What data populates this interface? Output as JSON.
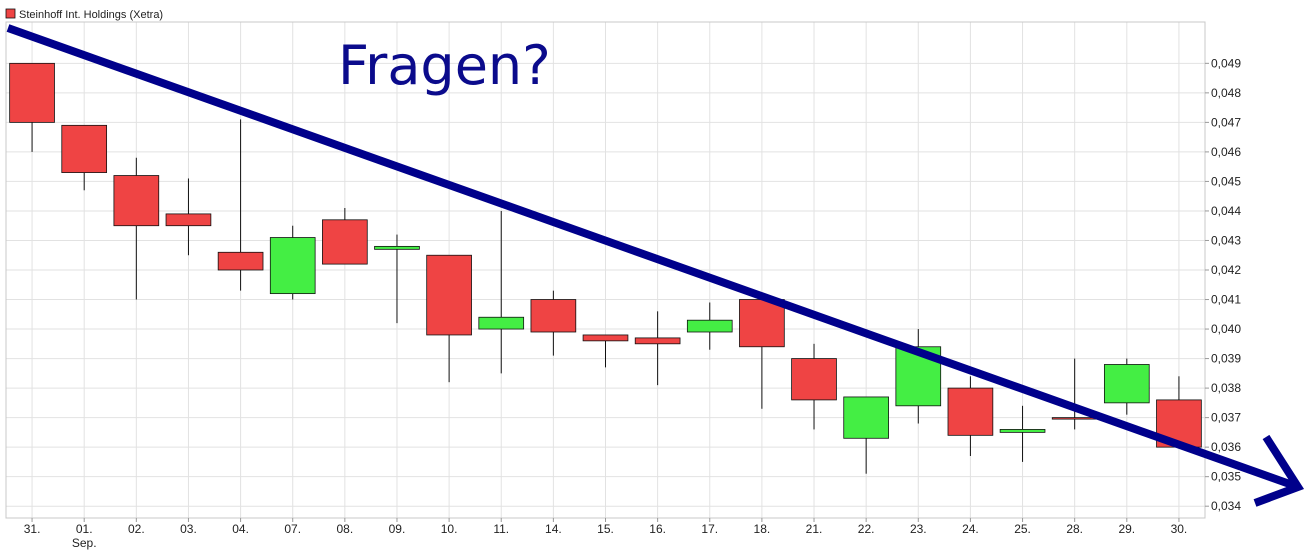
{
  "chart_data": {
    "type": "candlestick",
    "legend": {
      "label": "Steinhoff Int. Holdings (Xetra)",
      "color": "#ef4444",
      "placement": "top-left"
    },
    "annotation": "Fragen?",
    "grid": true,
    "colors": {
      "up": "#44ee44",
      "down": "#ef4444",
      "outline": "#111111",
      "trend": "#00008b"
    },
    "ylim": [
      0.0336,
      0.0504
    ],
    "yticks": [
      "0,034",
      "0,035",
      "0,036",
      "0,037",
      "0,038",
      "0,039",
      "0,040",
      "0,041",
      "0,042",
      "0,043",
      "0,044",
      "0,045",
      "0,046",
      "0,047",
      "0,048",
      "0,049"
    ],
    "categories": [
      "31.",
      "01.",
      "02.",
      "03.",
      "04.",
      "07.",
      "08.",
      "09.",
      "10.",
      "11.",
      "14.",
      "15.",
      "16.",
      "17.",
      "18.",
      "21.",
      "22.",
      "23.",
      "24.",
      "25.",
      "28.",
      "29.",
      "30."
    ],
    "sublabels": [
      "",
      "Sep.",
      "",
      "",
      "",
      "",
      "",
      "",
      "",
      "",
      "",
      "",
      "",
      "",
      "",
      "",
      "",
      "",
      "",
      "",
      "",
      "",
      ""
    ],
    "candles": [
      {
        "o": 0.049,
        "h": 0.049,
        "l": 0.046,
        "c": 0.047
      },
      {
        "o": 0.0469,
        "h": 0.0469,
        "l": 0.0447,
        "c": 0.0453
      },
      {
        "o": 0.0452,
        "h": 0.0458,
        "l": 0.041,
        "c": 0.0435
      },
      {
        "o": 0.0439,
        "h": 0.0451,
        "l": 0.0425,
        "c": 0.0435
      },
      {
        "o": 0.0426,
        "h": 0.0471,
        "l": 0.0413,
        "c": 0.042
      },
      {
        "o": 0.0412,
        "h": 0.0435,
        "l": 0.041,
        "c": 0.0431
      },
      {
        "o": 0.0437,
        "h": 0.0441,
        "l": 0.0422,
        "c": 0.0422
      },
      {
        "o": 0.0427,
        "h": 0.0432,
        "l": 0.0402,
        "c": 0.0428
      },
      {
        "o": 0.0425,
        "h": 0.0425,
        "l": 0.0382,
        "c": 0.0398
      },
      {
        "o": 0.04,
        "h": 0.044,
        "l": 0.0385,
        "c": 0.0404
      },
      {
        "o": 0.041,
        "h": 0.0413,
        "l": 0.0391,
        "c": 0.0399
      },
      {
        "o": 0.0398,
        "h": 0.0398,
        "l": 0.0387,
        "c": 0.0396
      },
      {
        "o": 0.0397,
        "h": 0.0406,
        "l": 0.0381,
        "c": 0.0395
      },
      {
        "o": 0.0399,
        "h": 0.0409,
        "l": 0.0393,
        "c": 0.0403
      },
      {
        "o": 0.041,
        "h": 0.041,
        "l": 0.0373,
        "c": 0.0394
      },
      {
        "o": 0.039,
        "h": 0.0395,
        "l": 0.0366,
        "c": 0.0376
      },
      {
        "o": 0.0363,
        "h": 0.0377,
        "l": 0.0351,
        "c": 0.0377
      },
      {
        "o": 0.0374,
        "h": 0.04,
        "l": 0.0368,
        "c": 0.0394
      },
      {
        "o": 0.038,
        "h": 0.0384,
        "l": 0.0357,
        "c": 0.0364
      },
      {
        "o": 0.0365,
        "h": 0.0374,
        "l": 0.0355,
        "c": 0.0366
      },
      {
        "o": 0.037,
        "h": 0.039,
        "l": 0.0366,
        "c": 0.037
      },
      {
        "o": 0.0375,
        "h": 0.039,
        "l": 0.0371,
        "c": 0.0388
      },
      {
        "o": 0.0376,
        "h": 0.0384,
        "l": 0.036,
        "c": 0.036
      }
    ]
  }
}
